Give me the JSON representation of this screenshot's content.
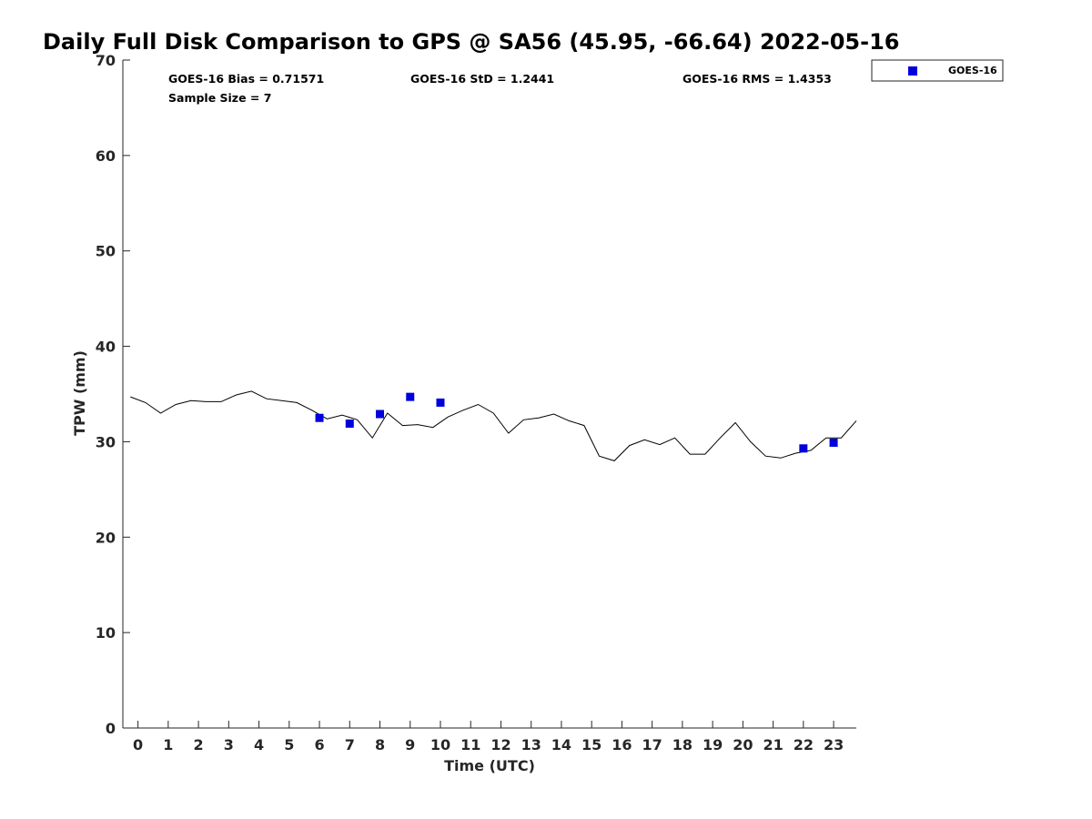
{
  "chart_data": {
    "type": "line",
    "title": "Daily Full Disk Comparison to GPS @ SA56 (45.95, -66.64) 2022-05-16",
    "xlabel": "Time (UTC)",
    "ylabel": "TPW (mm)",
    "xlim": [
      -0.5,
      23.75
    ],
    "ylim": [
      0,
      70
    ],
    "x_ticks": [
      0,
      1,
      2,
      3,
      4,
      5,
      6,
      7,
      8,
      9,
      10,
      11,
      12,
      13,
      14,
      15,
      16,
      17,
      18,
      19,
      20,
      21,
      22,
      23
    ],
    "y_ticks": [
      0,
      10,
      20,
      30,
      40,
      50,
      60,
      70
    ],
    "grid": false,
    "legend_position": "top-right, outside plot",
    "annotations": {
      "bias": "GOES-16 Bias = 0.71571",
      "std": "GOES-16 StD = 1.2441",
      "rms": "GOES-16 RMS = 1.4353",
      "sample": "Sample Size = 7"
    },
    "gps_line": {
      "color": "#000000",
      "x": [
        -0.25,
        0.25,
        0.75,
        1.25,
        1.75,
        2.25,
        2.75,
        3.25,
        3.75,
        4.25,
        4.75,
        5.25,
        5.75,
        6.25,
        6.75,
        7.25,
        7.75,
        8.25,
        8.75,
        9.25,
        9.75,
        10.25,
        10.75,
        11.25,
        11.75,
        12.25,
        12.75,
        13.25,
        13.75,
        14.25,
        14.75,
        15.25,
        15.75,
        16.25,
        16.75,
        17.25,
        17.75,
        18.25,
        18.75,
        19.25,
        19.75,
        20.25,
        20.75,
        21.25,
        21.75,
        22.25,
        22.75,
        23.25,
        23.75
      ],
      "y": [
        34.7,
        34.1,
        33.0,
        33.9,
        34.3,
        34.2,
        34.2,
        34.9,
        35.3,
        34.5,
        34.3,
        34.1,
        33.3,
        32.4,
        32.8,
        32.3,
        30.4,
        33.0,
        31.7,
        31.8,
        31.5,
        32.6,
        33.3,
        33.9,
        33.0,
        30.9,
        32.3,
        32.5,
        32.9,
        32.2,
        31.7,
        28.5,
        28.0,
        29.6,
        30.2,
        29.7,
        30.4,
        28.7,
        28.7,
        30.4,
        32.0,
        30.0,
        28.5,
        28.3,
        28.8,
        29.1,
        30.4,
        30.4,
        32.2
      ]
    },
    "series": [
      {
        "name": "GOES-16",
        "color": "#0000dd",
        "marker": "square",
        "x": [
          6,
          7,
          8,
          9,
          10,
          22,
          23
        ],
        "y": [
          32.5,
          31.9,
          32.9,
          34.7,
          34.1,
          29.3,
          29.9
        ]
      }
    ]
  }
}
